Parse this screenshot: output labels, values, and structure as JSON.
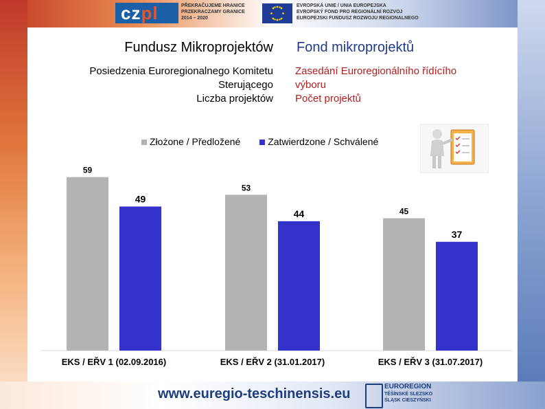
{
  "header": {
    "cz_logo_cz": "cz",
    "cz_logo_pl": "pl",
    "program_lines": [
      "PŘEKRAČUJEME HRANICE",
      "PRZEKRACZAMY GRANICE",
      "2014 – 2020"
    ],
    "eu_lines": [
      "EVROPSKÁ UNIE / UNIA EUROPEJSKA",
      "EVROPSKÝ FOND PRO REGIONÁLNÍ ROZVOJ",
      "EUROPEJSKI FUNDUSZ ROZWOJU REGIONALNEGO"
    ]
  },
  "titles": {
    "pl": "Fundusz Mikroprojektów",
    "cz": "Fond mikroprojektů"
  },
  "subtitles": {
    "pl_line1": "Posiedzenia Euroregionalnego Komitetu",
    "pl_line2": "Sterującego",
    "pl_line3": "Liczba projektów",
    "cz_line1": "Zasedání Euroregionálního řídícího",
    "cz_line2": "výboru",
    "cz_line3": "Počet projektů"
  },
  "chart_data": {
    "type": "bar",
    "categories": [
      "EKS / EŘV 1 (02.09.2016)",
      "EKS / EŘV 2 (31.01.2017)",
      "EKS / EŘV 3 (31.07.2017)"
    ],
    "series": [
      {
        "name": "Złożone / Předložené",
        "values": [
          59,
          53,
          45
        ],
        "color": "#b3b3b3"
      },
      {
        "name": "Zatwierdzone / Schválené",
        "values": [
          49,
          44,
          37
        ],
        "color": "#3333cc"
      }
    ],
    "ylim": [
      0,
      65
    ],
    "legend_position": "top",
    "grid": false
  },
  "footer": {
    "url": "www.euregio-teschinensis.eu",
    "euroregion_lines": [
      "EUROREGION",
      "TĚŠÍNSKÉ SLEZSKO",
      "ŚLĄSK CIESZYŃSKI"
    ]
  }
}
